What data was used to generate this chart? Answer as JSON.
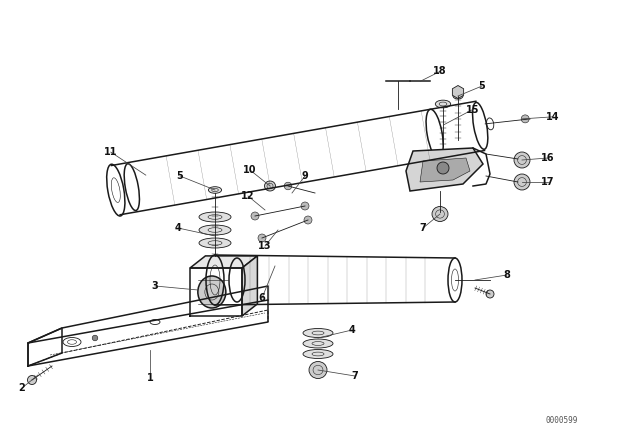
{
  "bg_color": "#ffffff",
  "fig_width": 6.4,
  "fig_height": 4.48,
  "dpi": 100,
  "watermark": "0000599",
  "line_color": "#1a1a1a",
  "label_color": "#111111",
  "label_fs": 7.0,
  "lw_main": 1.1,
  "lw_thin": 0.6,
  "lw_detail": 0.4,
  "xlim": [
    0,
    6.4
  ],
  "ylim": [
    0,
    4.48
  ]
}
